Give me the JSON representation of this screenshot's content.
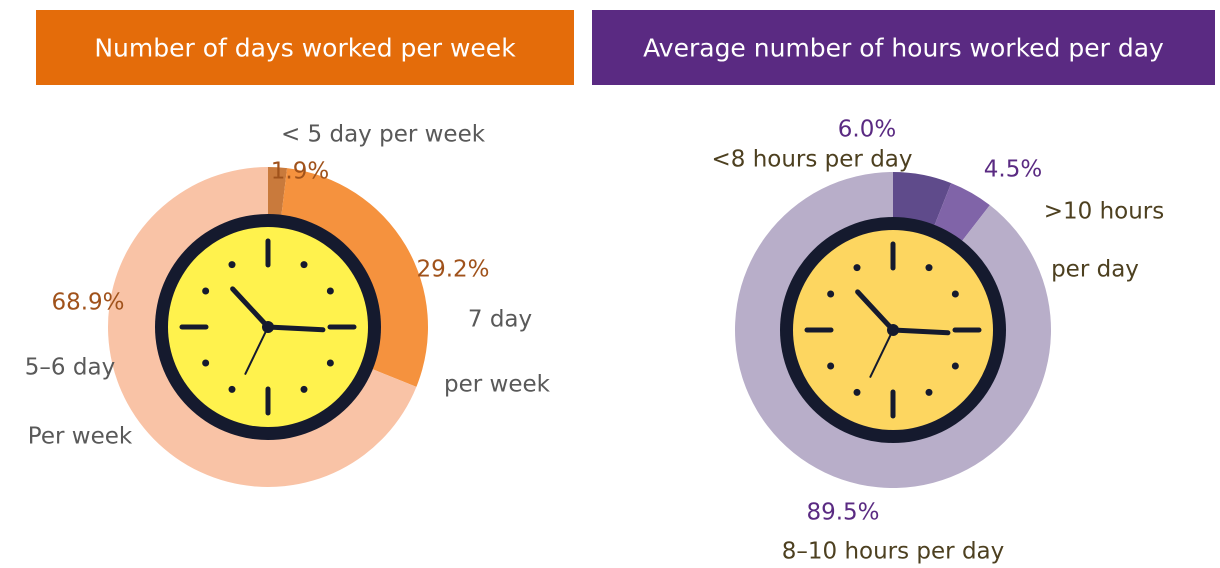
{
  "chart_data": [
    {
      "type": "pie",
      "title": "Number of days worked per week",
      "categories": [
        [
          "< 5 day per week"
        ],
        [
          "7 day",
          "per week"
        ],
        [
          "5–6 day",
          "Per week"
        ]
      ],
      "values": [
        1.9,
        29.2,
        68.9
      ],
      "value_labels": [
        "1.9%",
        "29.2%",
        "68.9%"
      ],
      "colors": [
        "#c97a3c",
        "#f5923e",
        "#f9c3a6"
      ],
      "header_color": "#e46c0a",
      "value_label_color": "#a0521b",
      "category_color": "#595959",
      "clock_face": "#fff24d"
    },
    {
      "type": "pie",
      "title": "Average number of hours worked per day",
      "categories": [
        [
          "<8 hours per day"
        ],
        [
          ">10 hours",
          "per day"
        ],
        [
          "8–10 hours per day"
        ]
      ],
      "values": [
        6.0,
        4.5,
        89.5
      ],
      "value_labels": [
        "6.0%",
        "4.5%",
        "89.5%"
      ],
      "colors": [
        "#5f4b8b",
        "#8064a8",
        "#b8aec9"
      ],
      "header_color": "#5a2a82",
      "value_label_color": "#5a2a82",
      "category_color": "#4d4020",
      "clock_face": "#fdd660"
    }
  ]
}
